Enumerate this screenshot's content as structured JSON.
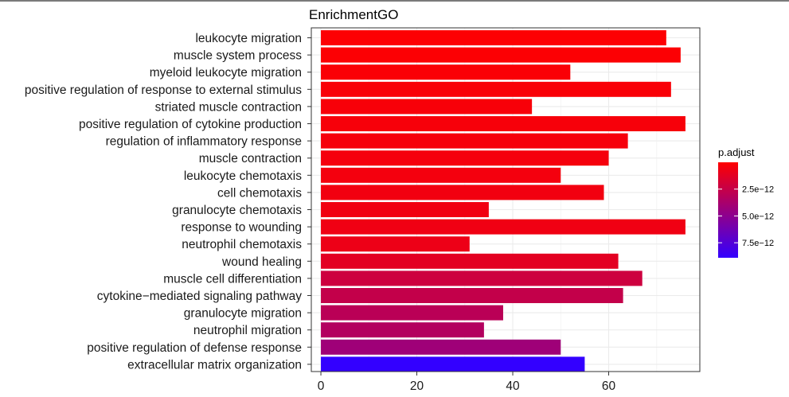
{
  "chart_data": {
    "type": "bar",
    "orientation": "horizontal",
    "title": "EnrichmentGO",
    "xlabel": "",
    "ylabel": "",
    "xlim": [
      -2,
      79
    ],
    "x_ticks": [
      0,
      20,
      40,
      60
    ],
    "grid": true,
    "legend_position": "right",
    "categories": [
      "leukocyte migration",
      "muscle system process",
      "myeloid leukocyte migration",
      "positive regulation of response to external stimulus",
      "striated muscle contraction",
      "positive regulation of cytokine production",
      "regulation of inflammatory response",
      "muscle contraction",
      "leukocyte chemotaxis",
      "cell chemotaxis",
      "granulocyte chemotaxis",
      "response to wounding",
      "neutrophil chemotaxis",
      "wound healing",
      "muscle cell differentiation",
      "cytokine−mediated signaling pathway",
      "granulocyte migration",
      "neutrophil migration",
      "positive regulation of defense response",
      "extracellular matrix organization"
    ],
    "values": [
      72,
      75,
      52,
      73,
      44,
      76,
      64,
      60,
      50,
      59,
      35,
      76,
      31,
      62,
      67,
      63,
      38,
      34,
      50,
      55
    ],
    "p_adjust": [
      1e-13,
      1.5e-13,
      2e-13,
      2.5e-13,
      3e-13,
      3.5e-13,
      4e-13,
      4.5e-13,
      5e-13,
      5.5e-13,
      6e-13,
      6.5e-13,
      8e-13,
      1.2e-12,
      2.2e-12,
      2.6e-12,
      3e-12,
      3.3e-12,
      4.2e-12,
      8.9e-12
    ],
    "color_legend": {
      "title": "p.adjust",
      "range": [
        0,
        8.9e-12
      ],
      "ticks": [
        2.5e-12,
        5e-12,
        7.5e-12
      ],
      "tick_labels": [
        "2.5e−12",
        "5.0e−12",
        "7.5e−12"
      ],
      "low_color": "#ff0000",
      "high_color": "#3300ff"
    }
  }
}
